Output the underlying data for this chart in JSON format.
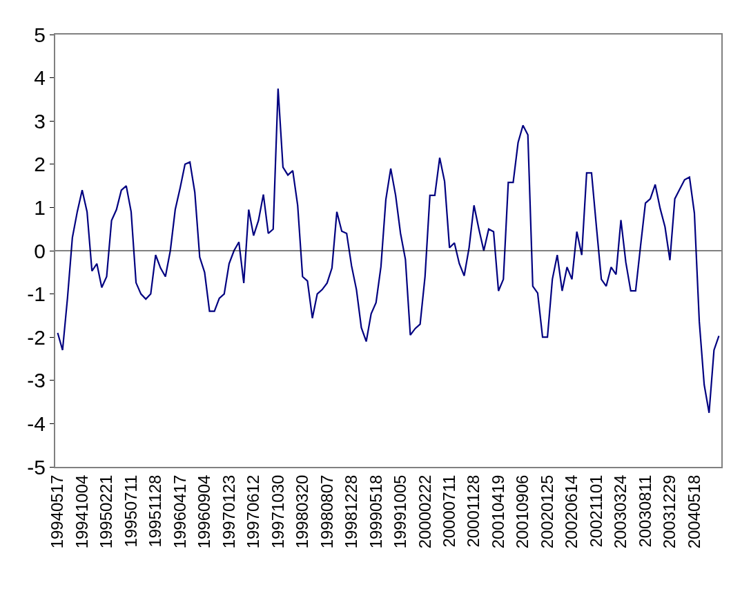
{
  "chart_data": {
    "type": "line",
    "categories": [
      "19940517",
      null,
      null,
      null,
      null,
      "19941004",
      null,
      null,
      null,
      null,
      "19950221",
      null,
      null,
      null,
      null,
      "19950711",
      null,
      null,
      null,
      null,
      "19951128",
      null,
      null,
      null,
      null,
      "19960417",
      null,
      null,
      null,
      null,
      "19960904",
      null,
      null,
      null,
      null,
      "19970123",
      null,
      null,
      null,
      null,
      "19970612",
      null,
      null,
      null,
      null,
      "19971030",
      null,
      null,
      null,
      null,
      "19980320",
      null,
      null,
      null,
      null,
      "19980807",
      null,
      null,
      null,
      null,
      "19981228",
      null,
      null,
      null,
      null,
      "19990518",
      null,
      null,
      null,
      null,
      "19991005",
      null,
      null,
      null,
      null,
      "20000222",
      null,
      null,
      null,
      null,
      "20000711",
      null,
      null,
      null,
      null,
      "20001128",
      null,
      null,
      null,
      null,
      "20010419",
      null,
      null,
      null,
      null,
      "20010906",
      null,
      null,
      null,
      null,
      "20020125",
      null,
      null,
      null,
      null,
      "20020614",
      null,
      null,
      null,
      null,
      "20021101",
      null,
      null,
      null,
      null,
      "20030324",
      null,
      null,
      null,
      null,
      "20030811",
      null,
      null,
      null,
      null,
      "20031229",
      null,
      null,
      null,
      null,
      "20040518",
      null,
      null,
      null,
      null,
      null
    ],
    "series": [
      {
        "color": "#000080",
        "values": [
          -1.9,
          -2.3,
          -1.1,
          0.3,
          0.9,
          1.4,
          0.9,
          -0.47,
          -0.3,
          -0.85,
          -0.6,
          0.7,
          0.95,
          1.4,
          1.5,
          0.9,
          -0.74,
          -1.0,
          -1.12,
          -1.0,
          -0.1,
          -0.4,
          -0.6,
          0.0,
          0.95,
          1.45,
          2.0,
          2.05,
          1.35,
          -0.15,
          -0.5,
          -1.4,
          -1.4,
          -1.1,
          -1.0,
          -0.3,
          0.0,
          0.2,
          -0.75,
          0.95,
          0.35,
          0.7,
          1.3,
          0.4,
          0.5,
          3.75,
          1.93,
          1.75,
          1.85,
          1.05,
          -0.6,
          -0.7,
          -1.56,
          -1.0,
          -0.9,
          -0.75,
          -0.4,
          0.9,
          0.45,
          0.4,
          -0.35,
          -0.9,
          -1.78,
          -2.1,
          -1.46,
          -1.2,
          -0.37,
          1.18,
          1.9,
          1.28,
          0.4,
          -0.2,
          -1.95,
          -1.8,
          -1.7,
          -0.6,
          1.28,
          1.28,
          2.15,
          1.6,
          0.07,
          0.18,
          -0.3,
          -0.58,
          0.07,
          1.05,
          0.5,
          0.0,
          0.5,
          0.44,
          -0.93,
          -0.66,
          1.58,
          1.58,
          2.5,
          2.9,
          2.68,
          -0.82,
          -0.98,
          -2.0,
          -2.0,
          -0.66,
          -0.1,
          -0.93,
          -0.38,
          -0.66,
          0.44,
          -0.1,
          1.8,
          1.8,
          0.55,
          -0.66,
          -0.82,
          -0.38,
          -0.55,
          0.71,
          -0.27,
          -0.93,
          -0.93,
          0.1,
          1.1,
          1.2,
          1.53,
          0.98,
          0.55,
          -0.22,
          1.2,
          1.42,
          1.64,
          1.7,
          0.87,
          -1.64,
          -3.1,
          -3.75,
          -2.3,
          -1.97
        ]
      }
    ],
    "ylim": [
      -5,
      5
    ],
    "yticks": [
      -5,
      -4,
      -3,
      -2,
      -1,
      0,
      1,
      2,
      3,
      4,
      5
    ],
    "ref_lines": [
      {
        "axis": "y",
        "value": 0,
        "color": "#000000"
      }
    ],
    "marker": "none",
    "line_style": "solid"
  }
}
